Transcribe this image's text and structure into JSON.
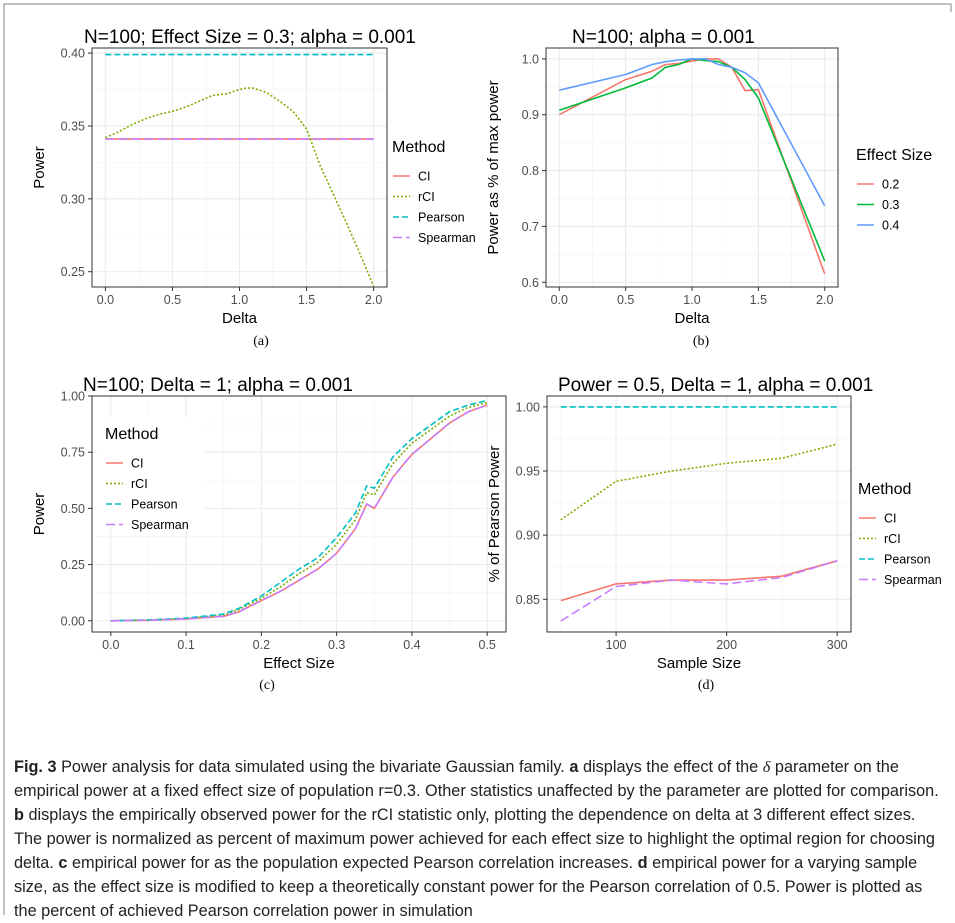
{
  "colors": {
    "ci": "#F8766D",
    "rci": "#7CAE00",
    "pearson": "#00BFC4",
    "spearman": "#C77CFF",
    "es02": "#F8766D",
    "es03": "#00BA38",
    "es04": "#619CFF",
    "grid_major": "#EBEBEB",
    "grid_minor": "#F5F5F5",
    "frame": "#333333",
    "border": "#9a9a9a"
  },
  "panels": [
    {
      "sublabel": "(a)",
      "chart_data": {
        "type": "line",
        "title": "N=100; Effect Size = 0.3; alpha = 0.001",
        "xlabel": "Delta",
        "ylabel": "Power",
        "xlim": [
          -0.1,
          2.1
        ],
        "ylim": [
          0.2395,
          0.4035
        ],
        "xticks": [
          0,
          0.5,
          1,
          1.5,
          2
        ],
        "xticklabels": [
          "0.0",
          "0.5",
          "1.0",
          "1.5",
          "2.0"
        ],
        "yticks": [
          0.25,
          0.3,
          0.35,
          0.4
        ],
        "yticklabels": [
          "0.25",
          "0.30",
          "0.35",
          "0.40"
        ],
        "grid": true,
        "legend_title": "Method",
        "legend_position": "right",
        "series": [
          {
            "name": "CI",
            "color_key": "ci",
            "dash": "solid",
            "x": [
              0,
              2
            ],
            "y": [
              0.341,
              0.341
            ]
          },
          {
            "name": "rCI",
            "color_key": "rci",
            "dash": "dotted",
            "x": [
              0,
              0.1,
              0.2,
              0.3,
              0.4,
              0.5,
              0.6,
              0.7,
              0.8,
              0.9,
              1.0,
              1.05,
              1.1,
              1.2,
              1.3,
              1.4,
              1.5,
              1.6,
              1.7,
              1.8,
              1.9,
              2.0
            ],
            "y": [
              0.342,
              0.346,
              0.351,
              0.355,
              0.358,
              0.36,
              0.363,
              0.367,
              0.371,
              0.372,
              0.375,
              0.376,
              0.376,
              0.373,
              0.367,
              0.36,
              0.348,
              0.323,
              0.303,
              0.283,
              0.262,
              0.24
            ]
          },
          {
            "name": "Pearson",
            "color_key": "pearson",
            "dash": "dashed",
            "x": [
              0,
              2
            ],
            "y": [
              0.399,
              0.399
            ]
          },
          {
            "name": "Spearman",
            "color_key": "spearman",
            "dash": "dashlong",
            "x": [
              0,
              2
            ],
            "y": [
              0.341,
              0.341
            ]
          }
        ]
      }
    },
    {
      "sublabel": "(b)",
      "chart_data": {
        "type": "line",
        "title": "N=100; alpha = 0.001",
        "xlabel": "Delta",
        "ylabel": "Power as % of max power",
        "xlim": [
          -0.1,
          2.1
        ],
        "ylim": [
          0.5915,
          1.0195
        ],
        "xticks": [
          0,
          0.5,
          1,
          1.5,
          2
        ],
        "xticklabels": [
          "0.0",
          "0.5",
          "1.0",
          "1.5",
          "2.0"
        ],
        "yticks": [
          0.6,
          0.7,
          0.8,
          0.9,
          1.0
        ],
        "yticklabels": [
          "0.6",
          "0.7",
          "0.8",
          "0.9",
          "1.0"
        ],
        "grid": true,
        "legend_title": "Effect Size",
        "legend_position": "right",
        "series": [
          {
            "name": "0.2",
            "color_key": "es02",
            "dash": "solid",
            "x": [
              0,
              0.5,
              0.7,
              0.8,
              0.9,
              1.0,
              1.1,
              1.2,
              1.3,
              1.4,
              1.5,
              2.0
            ],
            "y": [
              0.9,
              0.963,
              0.978,
              0.99,
              0.992,
              0.996,
              1.0,
              1.0,
              0.985,
              0.943,
              0.945,
              0.615
            ]
          },
          {
            "name": "0.3",
            "color_key": "es03",
            "dash": "solid",
            "x": [
              0,
              0.5,
              0.7,
              0.8,
              0.9,
              1.0,
              1.1,
              1.2,
              1.3,
              1.4,
              1.5,
              2.0
            ],
            "y": [
              0.908,
              0.948,
              0.966,
              0.985,
              0.99,
              1.0,
              0.997,
              0.995,
              0.985,
              0.963,
              0.93,
              0.638
            ]
          },
          {
            "name": "0.4",
            "color_key": "es04",
            "dash": "solid",
            "x": [
              0,
              0.5,
              0.7,
              0.8,
              0.9,
              1.0,
              1.1,
              1.2,
              1.3,
              1.4,
              1.5,
              2.0
            ],
            "y": [
              0.944,
              0.972,
              0.99,
              0.995,
              0.998,
              1.0,
              1.0,
              0.99,
              0.985,
              0.975,
              0.957,
              0.737
            ]
          }
        ]
      }
    },
    {
      "sublabel": "(c)",
      "chart_data": {
        "type": "line",
        "title": "N=100; Delta = 1; alpha = 0.001",
        "xlabel": "Effect Size",
        "ylabel": "Power",
        "xlim": [
          -0.025,
          0.525
        ],
        "ylim": [
          -0.05,
          1.0
        ],
        "xticks": [
          0,
          0.1,
          0.2,
          0.3,
          0.4,
          0.5
        ],
        "xticklabels": [
          "0.0",
          "0.1",
          "0.2",
          "0.3",
          "0.4",
          "0.5"
        ],
        "yticks": [
          0,
          0.25,
          0.5,
          0.75,
          1.0
        ],
        "yticklabels": [
          "0.00",
          "0.25",
          "0.50",
          "0.75",
          "1.00"
        ],
        "grid": true,
        "legend_title": "Method",
        "legend_position": "top-left",
        "series": [
          {
            "name": "CI",
            "color_key": "ci",
            "dash": "solid",
            "x": [
              0,
              0.05,
              0.1,
              0.15,
              0.17,
              0.2,
              0.225,
              0.25,
              0.275,
              0.3,
              0.325,
              0.34,
              0.35,
              0.375,
              0.4,
              0.425,
              0.45,
              0.475,
              0.5
            ],
            "y": [
              0,
              0.002,
              0.008,
              0.02,
              0.04,
              0.09,
              0.13,
              0.18,
              0.23,
              0.3,
              0.41,
              0.52,
              0.5,
              0.64,
              0.74,
              0.81,
              0.88,
              0.93,
              0.96
            ]
          },
          {
            "name": "rCI",
            "color_key": "rci",
            "dash": "dotted",
            "x": [
              0,
              0.05,
              0.1,
              0.15,
              0.17,
              0.2,
              0.225,
              0.25,
              0.275,
              0.3,
              0.325,
              0.34,
              0.35,
              0.375,
              0.4,
              0.425,
              0.45,
              0.475,
              0.5
            ],
            "y": [
              0,
              0.003,
              0.01,
              0.025,
              0.05,
              0.1,
              0.15,
              0.21,
              0.26,
              0.34,
              0.45,
              0.57,
              0.56,
              0.7,
              0.79,
              0.85,
              0.91,
              0.95,
              0.97
            ]
          },
          {
            "name": "Pearson",
            "color_key": "pearson",
            "dash": "dashed",
            "x": [
              0,
              0.05,
              0.1,
              0.15,
              0.17,
              0.2,
              0.225,
              0.25,
              0.275,
              0.3,
              0.325,
              0.34,
              0.35,
              0.375,
              0.4,
              0.425,
              0.45,
              0.475,
              0.5
            ],
            "y": [
              0,
              0.004,
              0.012,
              0.03,
              0.055,
              0.11,
              0.17,
              0.23,
              0.28,
              0.37,
              0.48,
              0.6,
              0.59,
              0.73,
              0.81,
              0.87,
              0.93,
              0.96,
              0.98
            ]
          },
          {
            "name": "Spearman",
            "color_key": "spearman",
            "dash": "dashlong",
            "x": [
              0,
              0.05,
              0.1,
              0.15,
              0.17,
              0.2,
              0.225,
              0.25,
              0.275,
              0.3,
              0.325,
              0.34,
              0.35,
              0.375,
              0.4,
              0.425,
              0.45,
              0.475,
              0.5
            ],
            "y": [
              0,
              0.002,
              0.008,
              0.02,
              0.04,
              0.09,
              0.13,
              0.18,
              0.23,
              0.3,
              0.41,
              0.52,
              0.5,
              0.64,
              0.74,
              0.81,
              0.88,
              0.93,
              0.96
            ]
          }
        ]
      }
    },
    {
      "sublabel": "(d)",
      "chart_data": {
        "type": "line",
        "title": "Power = 0.5, Delta = 1, alpha = 0.001",
        "xlabel": "Sample Size",
        "ylabel": "% of Pearson Power",
        "xlim": [
          37.5,
          312.5
        ],
        "ylim": [
          0.8245,
          1.0085
        ],
        "xticks": [
          100,
          200,
          300
        ],
        "xticklabels": [
          "100",
          "200",
          "300"
        ],
        "yticks": [
          0.85,
          0.9,
          0.95,
          1.0
        ],
        "yticklabels": [
          "0.85",
          "0.90",
          "0.95",
          "1.00"
        ],
        "grid": true,
        "legend_title": "Method",
        "legend_position": "right",
        "series": [
          {
            "name": "CI",
            "color_key": "ci",
            "dash": "solid",
            "x": [
              50,
              100,
              150,
              200,
              250,
              300
            ],
            "y": [
              0.849,
              0.862,
              0.865,
              0.865,
              0.868,
              0.88
            ]
          },
          {
            "name": "rCI",
            "color_key": "rci",
            "dash": "dotted",
            "x": [
              50,
              100,
              150,
              200,
              250,
              300
            ],
            "y": [
              0.912,
              0.942,
              0.95,
              0.956,
              0.96,
              0.971
            ]
          },
          {
            "name": "Pearson",
            "color_key": "pearson",
            "dash": "dashed",
            "x": [
              50,
              300
            ],
            "y": [
              1.0,
              1.0
            ]
          },
          {
            "name": "Spearman",
            "color_key": "spearman",
            "dash": "dashlong",
            "x": [
              50,
              100,
              150,
              200,
              250,
              300
            ],
            "y": [
              0.833,
              0.86,
              0.865,
              0.862,
              0.867,
              0.88
            ]
          }
        ]
      }
    }
  ],
  "caption": {
    "fig_label": "Fig. 3",
    "intro": "Power analysis for data simulated using the bivariate Gaussian family.",
    "a_label": "a",
    "a_text_1": "displays the effect of the",
    "delta_symbol": "δ",
    "a_text_2": "parameter on the empirical power at a fixed effect size of population r=0.3. Other statistics unaffected by the parameter are plotted for comparison.",
    "b_label": "b",
    "b_text": "displays the empirically observed power for the rCI statistic only, plotting the dependence on delta at 3 different effect sizes. The power is normalized as percent of maximum power achieved for each effect size to highlight the optimal region for choosing delta.",
    "c_label": "c",
    "c_text": "empirical power for as the population expected Pearson correlation increases.",
    "d_label": "d",
    "d_text": "empirical power for a varying sample size, as the effect size is modified to keep a theoretically constant power for the Pearson correlation of 0.5. Power is plotted as the percent of achieved Pearson correlation power in simulation"
  }
}
